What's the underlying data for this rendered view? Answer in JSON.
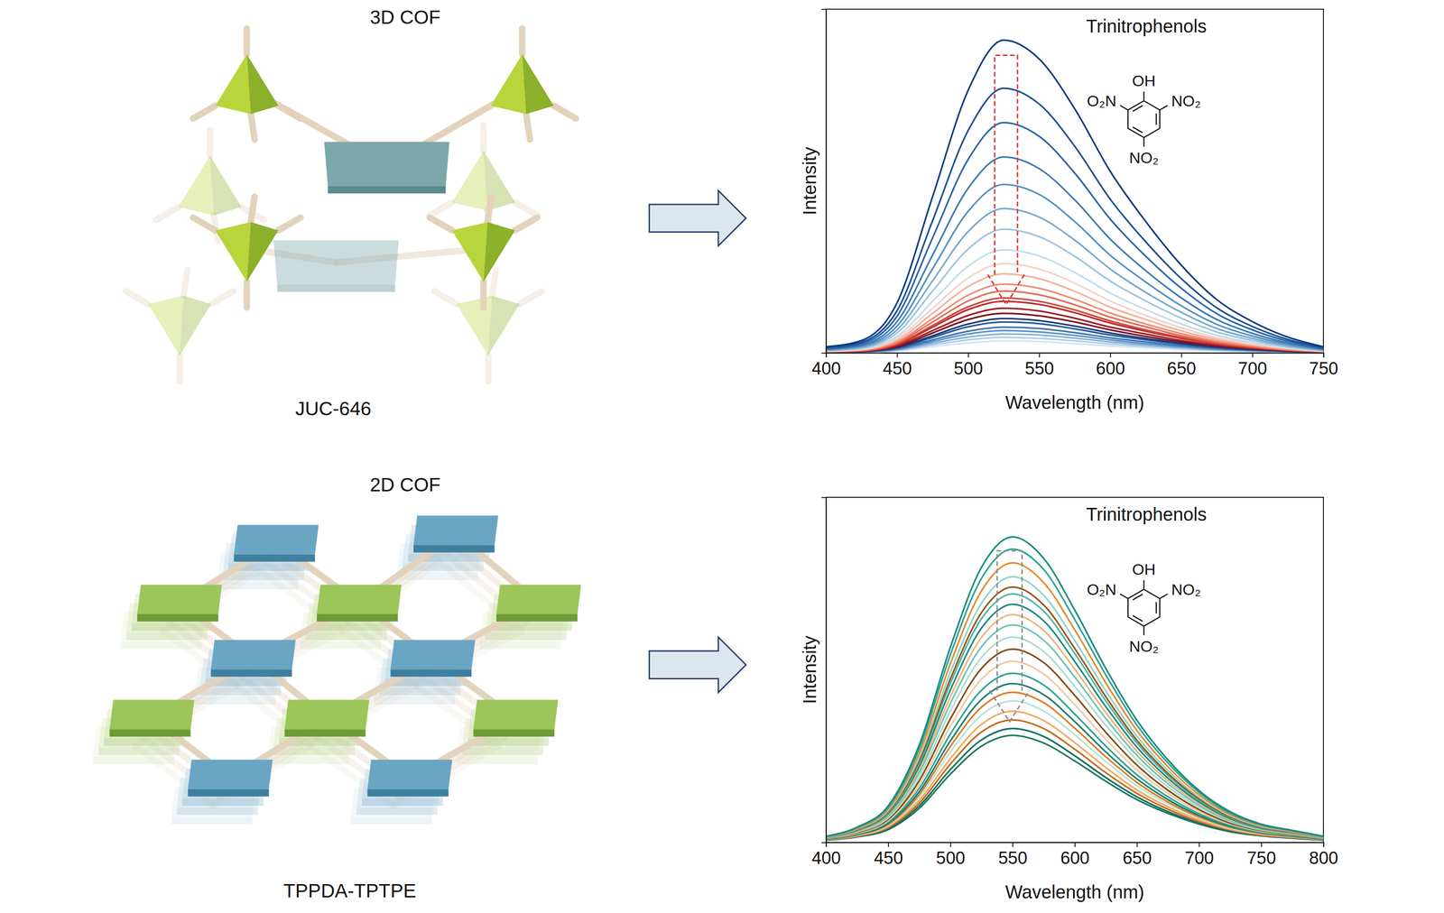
{
  "chart_data": [
    {
      "type": "line",
      "x_label": "Wavelength (nm)",
      "y_label": "Intensity",
      "annotations": [
        "Trinitrophenols",
        "OH",
        "O₂N",
        "NO₂",
        "NO₂"
      ],
      "xlim": [
        400,
        750
      ],
      "xticks": [
        400,
        450,
        500,
        550,
        600,
        650,
        700,
        750
      ],
      "ylim": [
        0,
        100
      ],
      "tick_labels": "x",
      "grid": false,
      "line_style": "solid",
      "x": [
        400,
        425,
        450,
        475,
        500,
        525,
        550,
        575,
        600,
        625,
        650,
        675,
        700,
        725,
        750
      ],
      "series": [
        {
          "color": "#0b3b80",
          "values": [
            1.8,
            3.6,
            14.6,
            45.5,
            76.4,
            91,
            85.5,
            71,
            52.8,
            38.2,
            25.5,
            15.5,
            9.1,
            4.6,
            1.8
          ]
        },
        {
          "color": "#1a4f94",
          "values": [
            1.5,
            3.1,
            12.3,
            38.5,
            64.7,
            77,
            72.4,
            60.1,
            44.7,
            32.3,
            21.6,
            13.1,
            7.7,
            3.9,
            1.5
          ]
        },
        {
          "color": "#2a64a8",
          "values": [
            1.3,
            2.7,
            10.7,
            33.5,
            56.3,
            67,
            63,
            52.3,
            38.9,
            28.1,
            18.8,
            11.4,
            6.7,
            3.4,
            1.3
          ]
        },
        {
          "color": "#3b78b5",
          "values": [
            1.1,
            2.3,
            9.1,
            28.5,
            47.9,
            57,
            53.6,
            44.5,
            33.1,
            23.9,
            16,
            9.7,
            5.7,
            2.9,
            1.1
          ]
        },
        {
          "color": "#5290c2",
          "values": [
            1,
            2,
            7.8,
            24.5,
            41.2,
            49,
            46.1,
            38.2,
            28.4,
            20.6,
            13.7,
            8.3,
            4.9,
            2.5,
            1
          ]
        },
        {
          "color": "#74a9cf",
          "values": [
            0.8,
            1.7,
            6.7,
            21,
            35.3,
            42,
            39.5,
            32.8,
            24.4,
            17.6,
            11.8,
            7.1,
            4.2,
            2.1,
            0.8
          ]
        },
        {
          "color": "#9cc3df",
          "values": [
            0.7,
            1.4,
            5.8,
            18,
            30.2,
            36,
            33.8,
            28.1,
            20.9,
            15.1,
            10.1,
            6.1,
            3.6,
            1.8,
            0.7
          ]
        },
        {
          "color": "#c3dbec",
          "values": [
            0.6,
            1.2,
            4.8,
            15,
            25.2,
            30,
            28.2,
            23.4,
            17.4,
            12.6,
            8.4,
            5.1,
            3,
            1.5,
            0.6
          ]
        },
        {
          "color": "#f3d3c8",
          "values": [
            0.5,
            1,
            4.2,
            13,
            21.8,
            26,
            24.4,
            20.3,
            15.1,
            10.9,
            7.3,
            4.4,
            2.6,
            1.3,
            0.5
          ]
        },
        {
          "color": "#f4b09a",
          "values": [
            0.5,
            0.9,
            3.7,
            11.5,
            19.3,
            23,
            21.6,
            17.9,
            13.3,
            9.7,
            6.4,
            3.9,
            2.3,
            1.2,
            0.5
          ]
        },
        {
          "color": "#ee8c72",
          "values": [
            0.4,
            0.8,
            3.2,
            10,
            16.8,
            20,
            18.8,
            15.6,
            11.6,
            8.4,
            5.6,
            3.4,
            2,
            1,
            0.4
          ]
        },
        {
          "color": "#e36a55",
          "values": [
            0.4,
            0.7,
            2.9,
            9,
            15.1,
            18,
            16.9,
            14,
            10.4,
            7.6,
            5,
            3.1,
            1.8,
            0.9,
            0.4
          ]
        },
        {
          "color": "#d4473a",
          "values": [
            0.3,
            0.6,
            2.6,
            8,
            13.4,
            16,
            15,
            12.5,
            9.3,
            6.7,
            4.5,
            2.7,
            1.6,
            0.8,
            0.3
          ]
        },
        {
          "color": "#c0292b",
          "values": [
            0.3,
            0.6,
            2.4,
            7.5,
            12.6,
            15,
            14.1,
            11.7,
            8.7,
            6.3,
            4.2,
            2.6,
            1.5,
            0.8,
            0.3
          ]
        },
        {
          "color": "#a11a25",
          "values": [
            0.3,
            0.5,
            2.1,
            6.5,
            10.9,
            13,
            12.2,
            10.1,
            7.5,
            5.5,
            3.6,
            2.2,
            1.3,
            0.7,
            0.3
          ]
        },
        {
          "color": "#7a0f1e",
          "values": [
            0.2,
            0.5,
            1.8,
            5.8,
            9.7,
            11.5,
            10.8,
            9,
            6.7,
            4.8,
            3.2,
            2,
            1.2,
            0.6,
            0.2
          ]
        },
        {
          "color": "#173c7a",
          "values": [
            0.2,
            0.4,
            1.6,
            5,
            8.4,
            10,
            9.4,
            7.8,
            5.8,
            4.2,
            2.8,
            1.7,
            1,
            0.5,
            0.2
          ]
        },
        {
          "color": "#27589a",
          "values": [
            0.2,
            0.4,
            1.4,
            4.5,
            7.6,
            9,
            8.5,
            7,
            5.2,
            3.8,
            2.5,
            1.5,
            0.9,
            0.5,
            0.2
          ]
        },
        {
          "color": "#3f74b4",
          "values": [
            0.2,
            0.3,
            1.2,
            3.8,
            6.3,
            7.5,
            7.1,
            5.9,
            4.4,
            3.2,
            2.1,
            1.3,
            0.8,
            0.4,
            0.2
          ]
        },
        {
          "color": "#5e93c8",
          "values": [
            0.1,
            0.3,
            1,
            3.3,
            5.5,
            6.5,
            6.1,
            5.1,
            3.8,
            2.7,
            1.8,
            1.1,
            0.7,
            0.3,
            0.1
          ]
        },
        {
          "color": "#86b2da",
          "values": [
            0.1,
            0.2,
            0.9,
            2.8,
            4.6,
            5.5,
            5.2,
            4.3,
            3.2,
            2.3,
            1.5,
            0.9,
            0.6,
            0.3,
            0.1
          ]
        },
        {
          "color": "#aecde8",
          "values": [
            0.1,
            0.2,
            0.7,
            2.3,
            3.8,
            4.5,
            4.2,
            3.5,
            2.6,
            1.9,
            1.3,
            0.8,
            0.5,
            0.2,
            0.1
          ]
        },
        {
          "color": "#d3e4f2",
          "values": [
            0.1,
            0.1,
            0.6,
            1.8,
            2.9,
            3.5,
            3.3,
            2.7,
            2,
            1.5,
            1,
            0.6,
            0.4,
            0.2,
            0.1
          ]
        }
      ]
    },
    {
      "type": "line",
      "x_label": "Wavelength (nm)",
      "y_label": "Intensity",
      "annotations": [
        "Trinitrophenols",
        "OH",
        "O₂N",
        "NO₂",
        "NO₂"
      ],
      "xlim": [
        400,
        800
      ],
      "xticks": [
        400,
        450,
        500,
        550,
        600,
        650,
        700,
        750,
        800
      ],
      "ylim": [
        0,
        100
      ],
      "tick_labels": "x",
      "grid": false,
      "line_style": "solid",
      "x": [
        400,
        425,
        450,
        475,
        500,
        525,
        550,
        575,
        600,
        625,
        650,
        675,
        700,
        725,
        750,
        775,
        800
      ],
      "series": [
        {
          "color": "#1b8a80",
          "values": [
            1.8,
            4.4,
            10.6,
            28.3,
            56.6,
            79.7,
            88.5,
            82.3,
            67.3,
            50.4,
            35.4,
            23.9,
            15,
            8.9,
            5.3,
            3.5,
            1.8
          ]
        },
        {
          "color": "#2aa594",
          "values": [
            1.7,
            4.3,
            10.2,
            27.2,
            54.4,
            76.5,
            85,
            79.1,
            64.6,
            48.5,
            34,
            23,
            14.5,
            8.5,
            5.1,
            3.4,
            1.7
          ]
        },
        {
          "color": "#e6892e",
          "values": [
            1.6,
            4.1,
            9.7,
            25.9,
            51.8,
            72.9,
            81,
            75.3,
            61.6,
            46.2,
            32.4,
            21.9,
            13.8,
            8.1,
            4.9,
            3.2,
            1.6
          ]
        },
        {
          "color": "#8fd3c6",
          "values": [
            1.5,
            3.9,
            9.2,
            24.6,
            49.3,
            69.3,
            77,
            71.6,
            58.5,
            43.9,
            30.8,
            20.8,
            13.1,
            7.7,
            4.6,
            3.1,
            1.5
          ]
        },
        {
          "color": "#9a5516",
          "values": [
            1.5,
            3.7,
            8.9,
            23.7,
            47.4,
            66.6,
            74,
            68.8,
            56.2,
            42.2,
            29.6,
            20,
            12.6,
            7.4,
            4.4,
            3,
            1.5
          ]
        },
        {
          "color": "#4bb8a8",
          "values": [
            1.4,
            3.6,
            8.6,
            23,
            46.1,
            64.8,
            72,
            67,
            54.7,
            41,
            28.8,
            19.4,
            12.2,
            7.2,
            4.3,
            2.9,
            1.4
          ]
        },
        {
          "color": "#1b8a80",
          "values": [
            1.4,
            3.5,
            8.3,
            22.1,
            44.2,
            62.1,
            69,
            64.2,
            52.4,
            39.3,
            27.6,
            18.6,
            11.7,
            6.9,
            4.1,
            2.8,
            1.4
          ]
        },
        {
          "color": "#f2b27a",
          "values": [
            1.3,
            3.3,
            7.9,
            21.1,
            42.2,
            59.4,
            66,
            61.4,
            50.2,
            37.6,
            26.4,
            17.8,
            11.2,
            6.6,
            4,
            2.6,
            1.3
          ]
        },
        {
          "color": "#6cc4b4",
          "values": [
            1.3,
            3.2,
            7.6,
            20.2,
            40.3,
            56.7,
            63,
            58.6,
            47.9,
            35.9,
            25.2,
            17,
            10.7,
            6.3,
            3.8,
            2.5,
            1.3
          ]
        },
        {
          "color": "#a9ddd2",
          "values": [
            1.2,
            3,
            7.1,
            19,
            38.1,
            53.6,
            59.5,
            55.3,
            45.2,
            33.9,
            23.8,
            16.1,
            10.1,
            6,
            3.6,
            2.4,
            1.2
          ]
        },
        {
          "color": "#8a4a12",
          "values": [
            1.1,
            2.8,
            6.7,
            17.9,
            35.8,
            50.4,
            56,
            52.1,
            42.6,
            31.9,
            22.4,
            15.1,
            9.5,
            5.6,
            3.4,
            2.2,
            1.1
          ]
        },
        {
          "color": "#f0c9a0",
          "values": [
            1.1,
            2.6,
            6.3,
            16.8,
            33.6,
            47.3,
            52.5,
            48.8,
            39.9,
            29.9,
            21,
            14.2,
            8.9,
            5.3,
            3.2,
            2.1,
            1.1
          ]
        },
        {
          "color": "#2aa594",
          "values": [
            1,
            2.5,
            5.9,
            15.7,
            31.4,
            44.1,
            49,
            45.6,
            37.2,
            27.9,
            19.6,
            13.2,
            8.3,
            4.9,
            2.9,
            2,
            1
          ]
        },
        {
          "color": "#1d7d72",
          "values": [
            0.9,
            2.3,
            5.5,
            14.7,
            29.4,
            41.4,
            46,
            42.8,
            35,
            26.2,
            18.4,
            12.4,
            7.8,
            4.6,
            2.8,
            1.8,
            0.9
          ]
        },
        {
          "color": "#e07a1f",
          "values": [
            0.9,
            2.2,
            5.2,
            13.9,
            27.8,
            39.2,
            43.5,
            40.5,
            33.1,
            24.8,
            17.4,
            11.7,
            7.4,
            4.4,
            2.6,
            1.7,
            0.9
          ]
        },
        {
          "color": "#b6e3d9",
          "values": [
            0.8,
            2.1,
            4.9,
            13.1,
            26.2,
            36.9,
            41,
            38.1,
            31.2,
            23.4,
            16.4,
            11.1,
            7,
            4.1,
            2.5,
            1.6,
            0.8
          ]
        },
        {
          "color": "#f5a65b",
          "values": [
            0.8,
            1.9,
            4.6,
            12.2,
            24.3,
            34.2,
            38,
            35.3,
            28.9,
            21.7,
            15.2,
            10.3,
            6.5,
            3.8,
            2.3,
            1.5,
            0.8
          ]
        },
        {
          "color": "#c46a1a",
          "values": [
            0.7,
            1.8,
            4.3,
            11.4,
            22.7,
            32,
            35.5,
            33,
            27,
            20.2,
            14.2,
            9.6,
            6,
            3.6,
            2.1,
            1.4,
            0.7
          ]
        },
        {
          "color": "#0f6e64",
          "values": [
            0.7,
            1.7,
            4,
            10.6,
            21.1,
            29.7,
            33,
            30.7,
            25.1,
            18.8,
            13.2,
            8.9,
            5.6,
            3.3,
            2,
            1.3,
            0.7
          ]
        },
        {
          "color": "#1e7a5e",
          "values": [
            0.6,
            1.6,
            3.7,
            9.9,
            19.8,
            27.9,
            31,
            28.8,
            23.6,
            17.7,
            12.4,
            8.4,
            5.3,
            3.1,
            1.9,
            1.2,
            0.6
          ]
        }
      ]
    }
  ],
  "diagram": [
    {
      "title": "3D COF",
      "label": "JUC-646"
    },
    {
      "title": "2D COF",
      "label": "TPPDA-TPTPE"
    }
  ]
}
